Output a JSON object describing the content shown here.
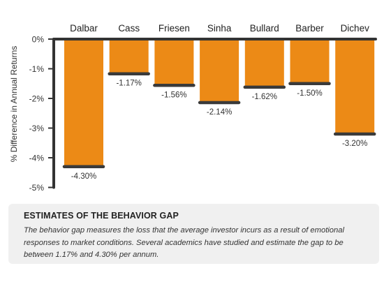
{
  "chart_data": {
    "type": "bar",
    "categories": [
      "Dalbar",
      "Cass",
      "Friesen",
      "Sinha",
      "Bullard",
      "Barber",
      "Dichev"
    ],
    "values": [
      -4.3,
      -1.17,
      -1.56,
      -2.14,
      -1.62,
      -1.5,
      -3.2
    ],
    "data_labels": [
      "-4.30%",
      "-1.17%",
      "-1.56%",
      "-2.14%",
      "-1.62%",
      "-1.50%",
      "-3.20%"
    ],
    "ylabel": "% Difference in Annual Returns",
    "ylim": [
      -5,
      0
    ],
    "yticks": [
      0,
      -1,
      -2,
      -3,
      -4,
      -5
    ],
    "ytick_labels": [
      "0%",
      "-1%",
      "-2%",
      "-3%",
      "-4%",
      "-5%"
    ],
    "category_axis_position": "top",
    "grid": false
  },
  "colors": {
    "bar": "#ec8a16",
    "bar_end_line": "#3a3a3a",
    "axis": "#333333",
    "text": "#333333",
    "caption_bg": "#f0f0f0"
  },
  "caption": {
    "title": "ESTIMATES OF THE BEHAVIOR GAP",
    "text": "The behavior gap measures the loss that the average investor incurs as a result of emotional responses to market conditions. Several academics have studied and estimate the gap to be between 1.17% and 4.30% per annum."
  }
}
